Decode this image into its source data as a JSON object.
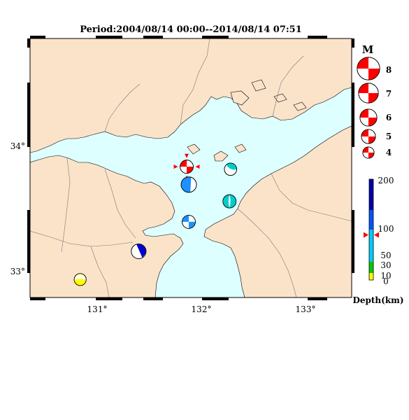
{
  "title": "Period:2004/08/14 00:00--2014/08/14 07:51",
  "colors": {
    "sea": "#ddffff",
    "land": "#fbe3c9",
    "coast": "#000000",
    "border": "#777777",
    "mech_red": "#ff0000",
    "depth_scale": [
      "#ffff00",
      "#00cc00",
      "#00ccff",
      "#0055ff",
      "#0000aa"
    ]
  },
  "axes": {
    "lon_ticks": [
      "131°",
      "132°",
      "133°"
    ],
    "lat_ticks": [
      "33°",
      "34°"
    ]
  },
  "magnitude_legend": {
    "heading": "M",
    "items": [
      {
        "mag": 8,
        "label": "8"
      },
      {
        "mag": 7,
        "label": "7"
      },
      {
        "mag": 6,
        "label": "6"
      },
      {
        "mag": 5,
        "label": "5"
      },
      {
        "mag": 4,
        "label": "4"
      }
    ]
  },
  "depth_legend": {
    "title": "Depth(km)",
    "ticks": [
      "200",
      "100",
      "50",
      "30",
      "10",
      "0"
    ],
    "marker_depth_km": 90
  },
  "events": [
    {
      "lon": 131.87,
      "lat": 33.8,
      "mag": 4.3,
      "depth_km": 45,
      "color": "#ff0000",
      "highlight": true,
      "style": "A"
    },
    {
      "lon": 132.29,
      "lat": 33.78,
      "mag": 4.0,
      "depth_km": 45,
      "color": "#00cccc",
      "highlight": false,
      "style": "B"
    },
    {
      "lon": 131.89,
      "lat": 33.66,
      "mag": 5.0,
      "depth_km": 70,
      "color": "#1e90ff",
      "highlight": false,
      "style": "C"
    },
    {
      "lon": 132.28,
      "lat": 33.53,
      "mag": 4.3,
      "depth_km": 45,
      "color": "#00cccc",
      "highlight": false,
      "style": "D"
    },
    {
      "lon": 131.89,
      "lat": 33.37,
      "mag": 4.3,
      "depth_km": 70,
      "color": "#1e90ff",
      "highlight": false,
      "style": "E"
    },
    {
      "lon": 131.41,
      "lat": 33.14,
      "mag": 4.8,
      "depth_km": 150,
      "color": "#0000cc",
      "highlight": false,
      "style": "F"
    },
    {
      "lon": 130.85,
      "lat": 32.92,
      "mag": 3.9,
      "depth_km": 8,
      "color": "#ffff00",
      "highlight": false,
      "style": "G"
    }
  ]
}
